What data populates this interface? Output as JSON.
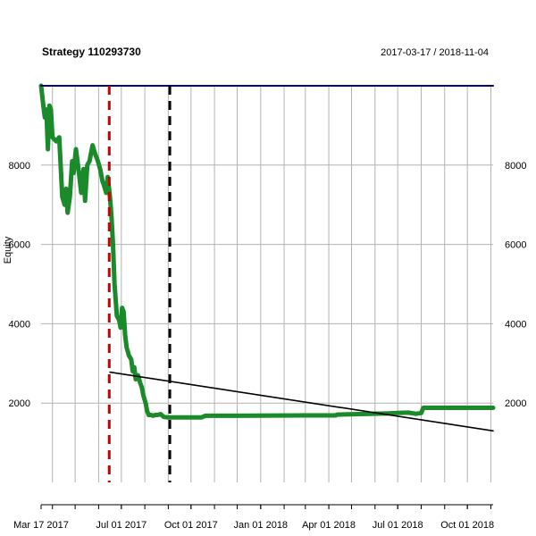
{
  "chart_data": {
    "type": "line",
    "title": "Strategy 110293730",
    "date_range_label": "2017-03-17 / 2018-11-04",
    "ylabel": "Equity",
    "xlabel": "",
    "xlim": [
      "2017-03-17",
      "2018-11-04"
    ],
    "ylim": [
      0,
      10000
    ],
    "y_ticks": [
      2000,
      4000,
      6000,
      8000
    ],
    "y_tick_labels": [
      "2000",
      "4000",
      "6000",
      "8000"
    ],
    "x_tick_labels": [
      {
        "date": "2017-03-17",
        "label": "Mar 17 2017"
      },
      {
        "date": "2017-07-01",
        "label": "Jul 01 2017"
      },
      {
        "date": "2017-10-01",
        "label": "Oct 01 2017"
      },
      {
        "date": "2018-01-01",
        "label": "Jan 01 2018"
      },
      {
        "date": "2018-04-01",
        "label": "Apr 01 2018"
      },
      {
        "date": "2018-07-01",
        "label": "Jul 01 2018"
      },
      {
        "date": "2018-10-01",
        "label": "Oct 01 2018"
      }
    ],
    "grid": true,
    "colors": {
      "equity": "#1a8a2a",
      "max_line": "#00007a",
      "trend": "#000000",
      "marker_red": "#cc0000",
      "marker_black": "#000000",
      "grid": "#b3b3b3",
      "axis": "#000000"
    },
    "series": [
      {
        "style": "equity",
        "points": [
          [
            "2017-03-17",
            10000
          ],
          [
            "2017-03-20",
            9500
          ],
          [
            "2017-03-22",
            9200
          ],
          [
            "2017-03-24",
            9400
          ],
          [
            "2017-03-26",
            8400
          ],
          [
            "2017-03-28",
            9500
          ],
          [
            "2017-03-30",
            9400
          ],
          [
            "2017-04-01",
            8700
          ],
          [
            "2017-04-06",
            8600
          ],
          [
            "2017-04-10",
            8700
          ],
          [
            "2017-04-14",
            7200
          ],
          [
            "2017-04-17",
            7000
          ],
          [
            "2017-04-19",
            7400
          ],
          [
            "2017-04-21",
            6800
          ],
          [
            "2017-04-24",
            7200
          ],
          [
            "2017-04-27",
            8100
          ],
          [
            "2017-04-29",
            7800
          ],
          [
            "2017-05-02",
            8400
          ],
          [
            "2017-05-06",
            7800
          ],
          [
            "2017-05-09",
            7300
          ],
          [
            "2017-05-12",
            7900
          ],
          [
            "2017-05-14",
            7100
          ],
          [
            "2017-05-17",
            8000
          ],
          [
            "2017-05-20",
            8100
          ],
          [
            "2017-05-24",
            8500
          ],
          [
            "2017-05-27",
            8300
          ],
          [
            "2017-05-31",
            8100
          ],
          [
            "2017-06-03",
            7900
          ],
          [
            "2017-06-06",
            7600
          ],
          [
            "2017-06-08",
            7500
          ],
          [
            "2017-06-11",
            7300
          ],
          [
            "2017-06-13",
            7700
          ],
          [
            "2017-06-16",
            7200
          ],
          [
            "2017-06-18",
            6700
          ],
          [
            "2017-06-20",
            6000
          ],
          [
            "2017-06-22",
            5000
          ],
          [
            "2017-06-25",
            4200
          ],
          [
            "2017-06-28",
            4100
          ],
          [
            "2017-06-30",
            3900
          ],
          [
            "2017-07-02",
            4400
          ],
          [
            "2017-07-04",
            4300
          ],
          [
            "2017-07-06",
            3700
          ],
          [
            "2017-07-08",
            3400
          ],
          [
            "2017-07-11",
            3200
          ],
          [
            "2017-07-14",
            3100
          ],
          [
            "2017-07-16",
            2800
          ],
          [
            "2017-07-18",
            2900
          ],
          [
            "2017-07-20",
            2600
          ],
          [
            "2017-07-23",
            2700
          ],
          [
            "2017-07-26",
            2500
          ],
          [
            "2017-07-28",
            2400
          ],
          [
            "2017-07-30",
            2200
          ],
          [
            "2017-08-02",
            2000
          ],
          [
            "2017-08-04",
            1800
          ],
          [
            "2017-08-06",
            1700
          ],
          [
            "2017-08-09",
            1700
          ],
          [
            "2017-08-12",
            1680
          ],
          [
            "2017-08-15",
            1700
          ],
          [
            "2017-08-18",
            1700
          ],
          [
            "2017-08-22",
            1720
          ],
          [
            "2017-08-26",
            1650
          ],
          [
            "2017-08-31",
            1640
          ],
          [
            "2017-09-10",
            1640
          ],
          [
            "2017-10-01",
            1640
          ],
          [
            "2017-10-15",
            1640
          ],
          [
            "2017-10-20",
            1680
          ],
          [
            "2017-12-01",
            1680
          ],
          [
            "2018-03-01",
            1690
          ],
          [
            "2018-04-10",
            1690
          ],
          [
            "2018-04-12",
            1710
          ],
          [
            "2018-06-20",
            1740
          ],
          [
            "2018-07-01",
            1750
          ],
          [
            "2018-07-15",
            1760
          ],
          [
            "2018-07-25",
            1730
          ],
          [
            "2018-08-01",
            1750
          ],
          [
            "2018-08-04",
            1880
          ],
          [
            "2018-08-20",
            1880
          ],
          [
            "2018-11-04",
            1880
          ]
        ]
      },
      {
        "style": "max_line",
        "points": [
          [
            "2017-03-17",
            10000
          ],
          [
            "2018-11-04",
            10000
          ]
        ]
      },
      {
        "style": "trend",
        "points": [
          [
            "2017-06-16",
            2780
          ],
          [
            "2018-11-04",
            1300
          ]
        ]
      }
    ],
    "vlines": [
      {
        "date": "2017-06-15",
        "style": "marker_red"
      },
      {
        "date": "2017-09-03",
        "style": "marker_black"
      }
    ]
  }
}
